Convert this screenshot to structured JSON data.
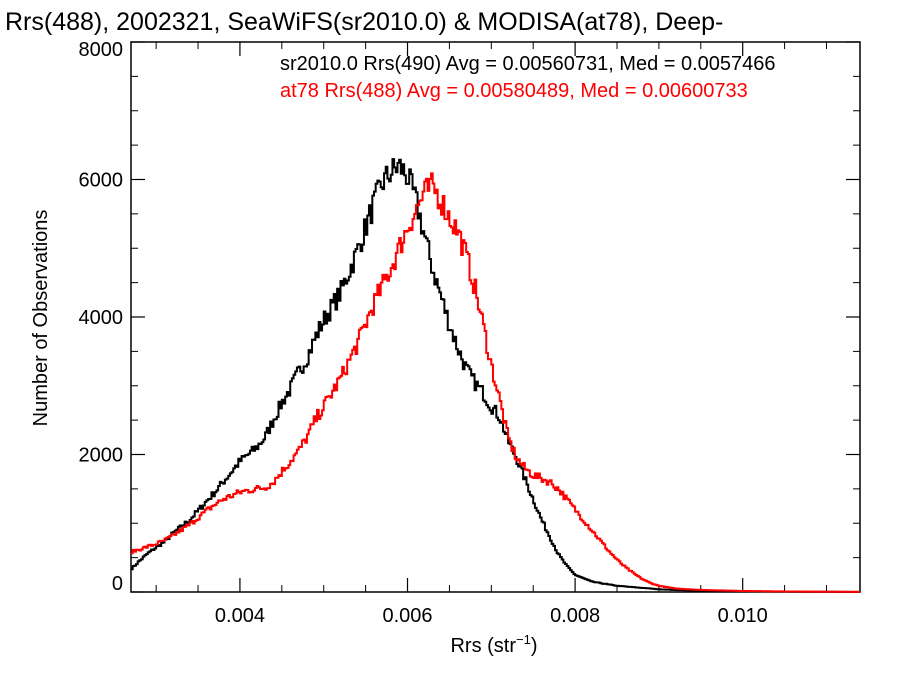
{
  "chart_data": {
    "type": "line",
    "title": "Rrs(488), 2002321, SeaWiFS(sr2010.0) & MODISA(at78), Deep-",
    "xlabel_main": "Rrs (str",
    "xlabel_sup": "−1",
    "xlabel_tail": ")",
    "ylabel": "Number of Observations",
    "xlim": [
      0.0027,
      0.0114
    ],
    "ylim": [
      0,
      8000
    ],
    "x_ticks": [
      0.004,
      0.006,
      0.008,
      0.01
    ],
    "x_tick_labels": [
      "0.004",
      "0.006",
      "0.008",
      "0.010"
    ],
    "y_ticks": [
      0,
      2000,
      4000,
      6000,
      8000
    ],
    "y_tick_labels": [
      "0",
      "2000",
      "4000",
      "6000",
      "8000"
    ],
    "x_minor_step": 0.0005,
    "y_minor_step": 500,
    "step_style": "histogram",
    "grid": false,
    "legend_position": "top-right",
    "annotations": [
      {
        "text": "sr2010.0 Rrs(490) Avg = 0.00560731, Med = 0.0057466",
        "color": "#000000"
      },
      {
        "text": "at78 Rrs(488) Avg = 0.00580489, Med = 0.00600733",
        "color": "#ff0000"
      }
    ],
    "series": [
      {
        "color": "#000000",
        "x": [
          0.0027,
          0.0028,
          0.0029,
          0.003,
          0.0031,
          0.0032,
          0.0033,
          0.0034,
          0.0035,
          0.0036,
          0.0037,
          0.0038,
          0.0039,
          0.004,
          0.0041,
          0.0042,
          0.0043,
          0.0044,
          0.0045,
          0.0046,
          0.0047,
          0.0048,
          0.0049,
          0.005,
          0.0051,
          0.0052,
          0.0053,
          0.0054,
          0.0055,
          0.0056,
          0.0057,
          0.0058,
          0.0059,
          0.006,
          0.0061,
          0.0062,
          0.0063,
          0.0064,
          0.0065,
          0.0066,
          0.0067,
          0.0068,
          0.0069,
          0.007,
          0.0071,
          0.0072,
          0.0073,
          0.0074,
          0.0075,
          0.0076,
          0.0077,
          0.0078,
          0.0079,
          0.008,
          0.0082,
          0.0085,
          0.0088,
          0.009,
          0.0093,
          0.0096,
          0.01,
          0.0105,
          0.011,
          0.0114
        ],
        "y": [
          330,
          450,
          560,
          650,
          730,
          850,
          950,
          1050,
          1180,
          1320,
          1450,
          1600,
          1750,
          1900,
          2000,
          2100,
          2250,
          2500,
          2750,
          2950,
          3200,
          3400,
          3700,
          3950,
          4150,
          4350,
          4650,
          4950,
          5300,
          5650,
          5950,
          6100,
          6200,
          6050,
          5700,
          5200,
          4700,
          4300,
          3900,
          3550,
          3250,
          3050,
          2900,
          2700,
          2550,
          2200,
          1950,
          1650,
          1350,
          1050,
          800,
          550,
          380,
          250,
          150,
          90,
          60,
          40,
          25,
          15,
          10,
          5,
          3,
          2
        ]
      },
      {
        "color": "#ff0000",
        "x": [
          0.0027,
          0.0028,
          0.0029,
          0.003,
          0.0031,
          0.0032,
          0.0033,
          0.0034,
          0.0035,
          0.0036,
          0.0037,
          0.0038,
          0.0039,
          0.004,
          0.0041,
          0.0042,
          0.0043,
          0.0044,
          0.0045,
          0.0046,
          0.0047,
          0.0048,
          0.0049,
          0.005,
          0.0051,
          0.0052,
          0.0053,
          0.0054,
          0.0055,
          0.0056,
          0.0057,
          0.0058,
          0.0059,
          0.006,
          0.0061,
          0.0062,
          0.0063,
          0.0064,
          0.0065,
          0.0066,
          0.0067,
          0.0068,
          0.0069,
          0.007,
          0.0071,
          0.0072,
          0.0073,
          0.0074,
          0.0075,
          0.0076,
          0.0077,
          0.0078,
          0.0079,
          0.008,
          0.0081,
          0.0082,
          0.0083,
          0.0084,
          0.0085,
          0.0086,
          0.0087,
          0.0088,
          0.0089,
          0.009,
          0.0092,
          0.0095,
          0.01,
          0.0105,
          0.011,
          0.0114
        ],
        "y": [
          580,
          620,
          660,
          700,
          750,
          820,
          900,
          980,
          1080,
          1180,
          1270,
          1350,
          1400,
          1450,
          1480,
          1500,
          1520,
          1600,
          1750,
          1900,
          2050,
          2250,
          2500,
          2700,
          2900,
          3100,
          3350,
          3600,
          3900,
          4200,
          4450,
          4700,
          5000,
          5300,
          5550,
          5800,
          5900,
          5700,
          5450,
          5250,
          4900,
          4450,
          3900,
          3300,
          2800,
          2250,
          1950,
          1800,
          1700,
          1650,
          1600,
          1500,
          1350,
          1200,
          1050,
          900,
          750,
          600,
          470,
          360,
          270,
          190,
          130,
          90,
          50,
          30,
          15,
          8,
          4,
          2
        ]
      }
    ]
  }
}
